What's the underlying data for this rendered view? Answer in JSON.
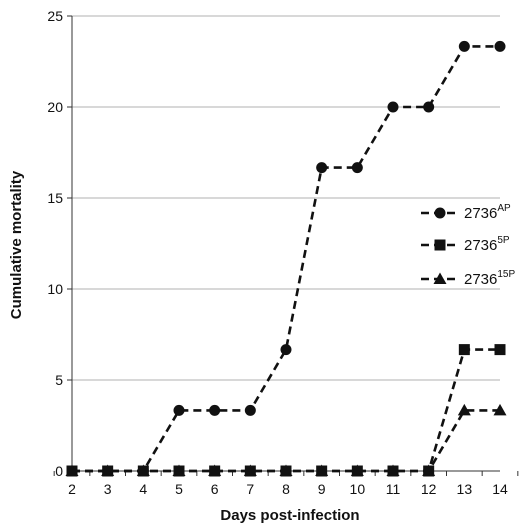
{
  "chart_data": {
    "type": "line",
    "xlabel": "Days post-infection",
    "ylabel": "Cumulative mortality",
    "x": [
      2,
      3,
      4,
      5,
      6,
      7,
      8,
      9,
      10,
      11,
      12,
      13,
      14
    ],
    "xlim": [
      2,
      14
    ],
    "ylim": [
      0,
      25
    ],
    "yticks": [
      0,
      5,
      10,
      15,
      20,
      25
    ],
    "grid": "horizontal",
    "legend_position": "right",
    "series": [
      {
        "base": "2736",
        "sup": "AP",
        "marker": "circle",
        "values": [
          0,
          0,
          0,
          3.33,
          3.33,
          3.33,
          6.67,
          16.67,
          16.67,
          20,
          20,
          23.33,
          23.33
        ]
      },
      {
        "base": "2736",
        "sup": "5P",
        "marker": "square",
        "values": [
          0,
          0,
          0,
          0,
          0,
          0,
          0,
          0,
          0,
          0,
          0,
          6.67,
          6.67
        ]
      },
      {
        "base": "2736",
        "sup": "15P",
        "marker": "triangle",
        "values": [
          0,
          0,
          0,
          0,
          0,
          0,
          0,
          0,
          0,
          0,
          0,
          3.33,
          3.33
        ]
      }
    ],
    "colors": {
      "line": "#111111",
      "grid": "#b0b0b0",
      "axis": "#333333"
    }
  }
}
